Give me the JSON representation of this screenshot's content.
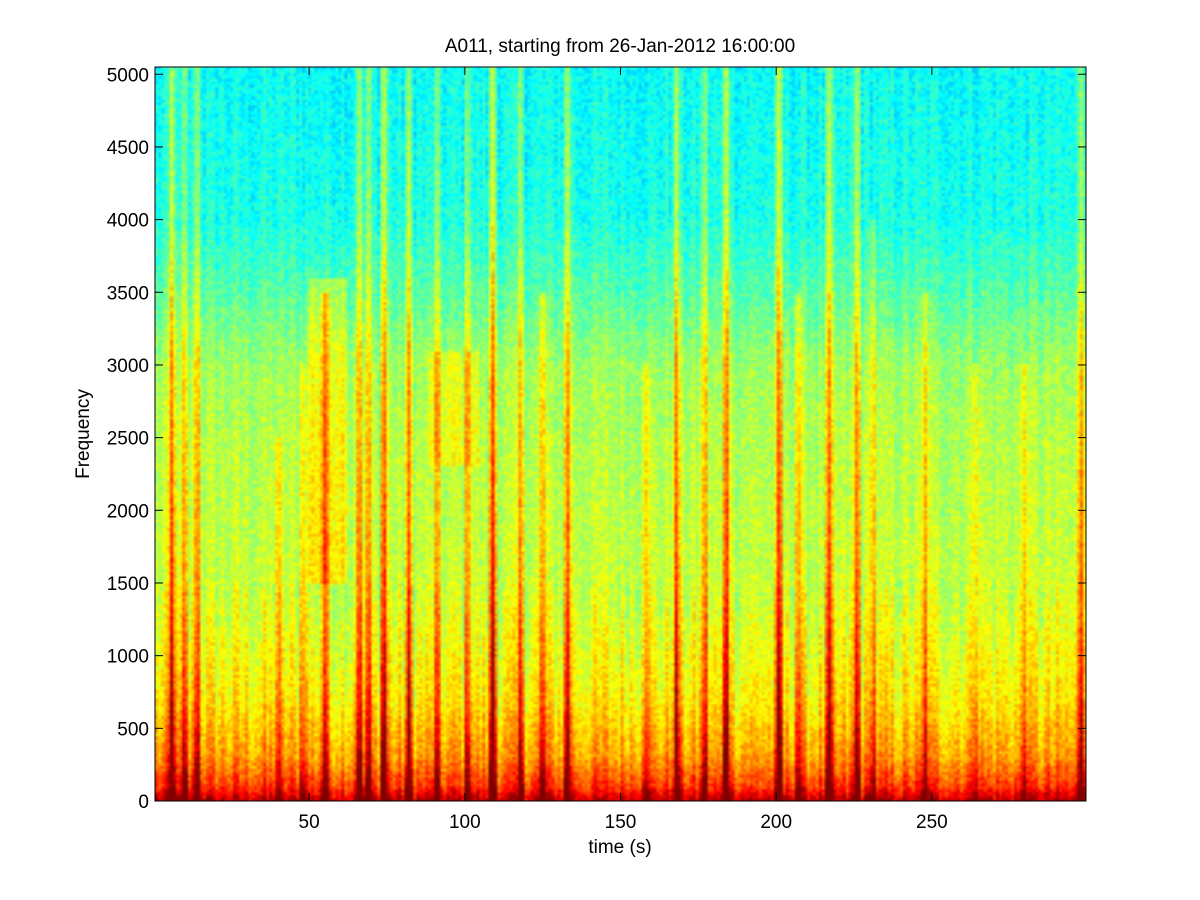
{
  "chart_data": {
    "type": "heatmap",
    "title": "A011, starting from 26-Jan-2012 16:00:00",
    "xlabel": "time (s)",
    "ylabel": "Frequency",
    "xlim": [
      0.5,
      299.5
    ],
    "ylim": [
      0,
      5050
    ],
    "xticks": [
      50,
      100,
      150,
      200,
      250
    ],
    "xtick_labels": [
      "50",
      "100",
      "150",
      "200",
      "250"
    ],
    "yticks": [
      0,
      500,
      1000,
      1500,
      2000,
      2500,
      3000,
      3500,
      4000,
      4500,
      5000
    ],
    "ytick_labels": [
      "0",
      "500",
      "1000",
      "1500",
      "2000",
      "2500",
      "3000",
      "3500",
      "4000",
      "4500",
      "5000"
    ],
    "colormap": "jet",
    "grid": false,
    "background_level": {
      "description_levels": "normalized spectral power 0-1 by frequency band",
      "frequency": [
        0,
        100,
        300,
        700,
        1500,
        2500,
        3000,
        3500,
        4000,
        5050
      ],
      "power": [
        0.95,
        0.82,
        0.72,
        0.64,
        0.57,
        0.55,
        0.53,
        0.46,
        0.4,
        0.38
      ]
    },
    "broadband_events": [
      {
        "time": 6,
        "strength": 0.85,
        "max_freq": 5050
      },
      {
        "time": 10,
        "strength": 0.5,
        "max_freq": 5050
      },
      {
        "time": 14,
        "strength": 0.7,
        "max_freq": 5050
      },
      {
        "time": 40,
        "strength": 0.35,
        "max_freq": 2500
      },
      {
        "time": 48,
        "strength": 0.4,
        "max_freq": 3000
      },
      {
        "time": 55,
        "strength": 0.55,
        "max_freq": 3500
      },
      {
        "time": 66,
        "strength": 0.75,
        "max_freq": 5050
      },
      {
        "time": 69,
        "strength": 0.6,
        "max_freq": 5050
      },
      {
        "time": 74,
        "strength": 0.9,
        "max_freq": 5050
      },
      {
        "time": 82,
        "strength": 0.65,
        "max_freq": 5050
      },
      {
        "time": 91,
        "strength": 0.5,
        "max_freq": 5050
      },
      {
        "time": 101,
        "strength": 0.6,
        "max_freq": 5050
      },
      {
        "time": 109,
        "strength": 0.95,
        "max_freq": 5050
      },
      {
        "time": 118,
        "strength": 0.6,
        "max_freq": 5050
      },
      {
        "time": 125,
        "strength": 0.55,
        "max_freq": 3500
      },
      {
        "time": 133,
        "strength": 0.75,
        "max_freq": 5050
      },
      {
        "time": 158,
        "strength": 0.45,
        "max_freq": 3000
      },
      {
        "time": 168,
        "strength": 0.75,
        "max_freq": 5050
      },
      {
        "time": 177,
        "strength": 0.6,
        "max_freq": 5050
      },
      {
        "time": 184,
        "strength": 0.95,
        "max_freq": 5050
      },
      {
        "time": 201,
        "strength": 0.9,
        "max_freq": 5050
      },
      {
        "time": 207,
        "strength": 0.55,
        "max_freq": 3500
      },
      {
        "time": 217,
        "strength": 0.7,
        "max_freq": 5050
      },
      {
        "time": 226,
        "strength": 0.75,
        "max_freq": 5050
      },
      {
        "time": 231,
        "strength": 0.5,
        "max_freq": 4000
      },
      {
        "time": 248,
        "strength": 0.45,
        "max_freq": 3500
      },
      {
        "time": 264,
        "strength": 0.4,
        "max_freq": 3000
      },
      {
        "time": 280,
        "strength": 0.4,
        "max_freq": 3000
      },
      {
        "time": 298,
        "strength": 0.7,
        "max_freq": 5050
      }
    ],
    "diffuse_regions": [
      {
        "time_range": [
          50,
          62
        ],
        "freq_range": [
          1500,
          3600
        ],
        "strength": 0.15
      },
      {
        "time_range": [
          88,
          105
        ],
        "freq_range": [
          2300,
          3100
        ],
        "strength": 0.1
      }
    ]
  }
}
